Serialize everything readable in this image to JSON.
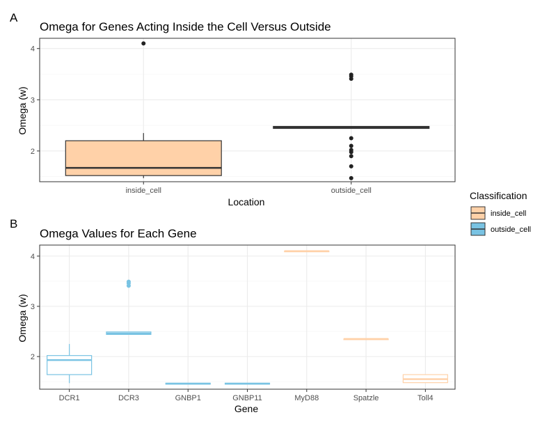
{
  "colors": {
    "inside_cell": "#FFD1A8",
    "outside_cell": "#79C3E3",
    "filled_line": "#333333"
  },
  "legend": {
    "title": "Classification",
    "items": [
      {
        "label": "inside_cell",
        "color": "#FFD1A8"
      },
      {
        "label": "outside_cell",
        "color": "#79C3E3"
      }
    ]
  },
  "chart_data": [
    {
      "tag": "A",
      "type": "boxplot",
      "title": "Omega for Genes Acting Inside the Cell Versus Outside",
      "xlabel": "Location",
      "ylabel": "Omega (w)",
      "ylim": [
        1.4,
        4.2
      ],
      "yticks": [
        2,
        3,
        4
      ],
      "grid": true,
      "style": "filled",
      "categories": [
        "inside_cell",
        "outside_cell"
      ],
      "boxes": [
        {
          "category": "inside_cell",
          "group": "inside_cell",
          "q1": 1.52,
          "median": 1.67,
          "q3": 2.2,
          "whisker_low": 1.47,
          "whisker_high": 2.35,
          "outliers": [
            4.1
          ]
        },
        {
          "category": "outside_cell",
          "group": "outside_cell",
          "q1": 2.44,
          "median": 2.46,
          "q3": 2.48,
          "whisker_low": 2.44,
          "whisker_high": 2.48,
          "outliers": [
            3.49,
            3.46,
            3.41,
            2.25,
            2.1,
            2.02,
            1.98,
            1.9,
            1.7,
            1.47
          ]
        }
      ]
    },
    {
      "tag": "B",
      "type": "boxplot",
      "title": "Omega Values for Each Gene",
      "xlabel": "Gene",
      "ylabel": "Omega (w)",
      "ylim": [
        1.35,
        4.22
      ],
      "yticks": [
        2,
        3,
        4
      ],
      "grid": true,
      "style": "outline",
      "categories": [
        "DCR1",
        "DCR3",
        "GNBP1",
        "GNBP11",
        "MyD88",
        "Spatzle",
        "Toll4"
      ],
      "boxes": [
        {
          "category": "DCR1",
          "group": "outside_cell",
          "q1": 1.64,
          "median": 1.93,
          "q3": 2.02,
          "whisker_low": 1.47,
          "whisker_high": 2.25,
          "outliers": []
        },
        {
          "category": "DCR3",
          "group": "outside_cell",
          "q1": 2.44,
          "median": 2.46,
          "q3": 2.49,
          "whisker_low": 2.44,
          "whisker_high": 2.49,
          "outliers": [
            3.49,
            3.46,
            3.41
          ]
        },
        {
          "category": "GNBP1",
          "group": "outside_cell",
          "q1": 1.45,
          "median": 1.46,
          "q3": 1.47,
          "whisker_low": 1.45,
          "whisker_high": 1.47,
          "outliers": []
        },
        {
          "category": "GNBP11",
          "group": "outside_cell",
          "q1": 1.45,
          "median": 1.46,
          "q3": 1.47,
          "whisker_low": 1.45,
          "whisker_high": 1.47,
          "outliers": []
        },
        {
          "category": "MyD88",
          "group": "inside_cell",
          "q1": 4.1,
          "median": 4.1,
          "q3": 4.1,
          "whisker_low": 4.1,
          "whisker_high": 4.1,
          "outliers": []
        },
        {
          "category": "Spatzle",
          "group": "inside_cell",
          "q1": 2.35,
          "median": 2.35,
          "q3": 2.35,
          "whisker_low": 2.35,
          "whisker_high": 2.35,
          "outliers": []
        },
        {
          "category": "Toll4",
          "group": "inside_cell",
          "q1": 1.48,
          "median": 1.55,
          "q3": 1.64,
          "whisker_low": 1.48,
          "whisker_high": 1.64,
          "outliers": []
        }
      ]
    }
  ]
}
